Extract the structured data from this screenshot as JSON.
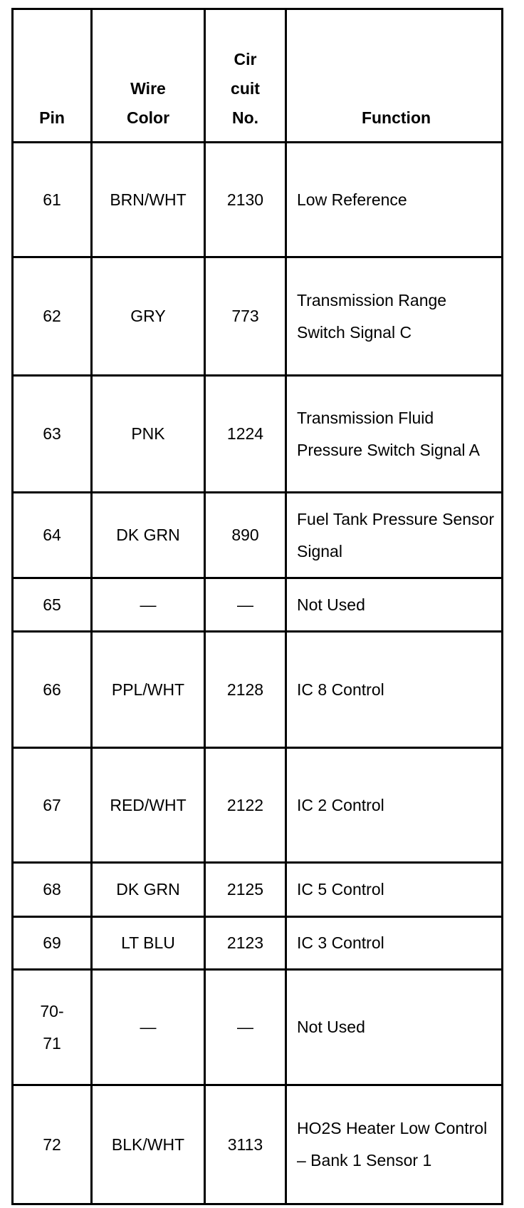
{
  "headers": {
    "pin": "Pin",
    "wire_color": "Wire Color",
    "circuit_no": "Cir cuit No.",
    "function": "Function"
  },
  "rows": [
    {
      "pin": "61",
      "wire": "BRN/WHT",
      "circuit": "2130",
      "function": "Low Reference"
    },
    {
      "pin": "62",
      "wire": "GRY",
      "circuit": "773",
      "function": "Transmission Range Switch Signal C"
    },
    {
      "pin": "63",
      "wire": "PNK",
      "circuit": "1224",
      "function": "Transmission Fluid Pressure Switch Signal A"
    },
    {
      "pin": "64",
      "wire": "DK GRN",
      "circuit": "890",
      "function": "Fuel Tank Pressure Sensor Signal"
    },
    {
      "pin": "65",
      "wire": "—",
      "circuit": "—",
      "function": "Not Used"
    },
    {
      "pin": "66",
      "wire": "PPL/WHT",
      "circuit": "2128",
      "function": "IC 8 Control"
    },
    {
      "pin": "67",
      "wire": "RED/WHT",
      "circuit": "2122",
      "function": "IC 2 Control"
    },
    {
      "pin": "68",
      "wire": "DK GRN",
      "circuit": "2125",
      "function": "IC 5 Control"
    },
    {
      "pin": "69",
      "wire": "LT BLU",
      "circuit": "2123",
      "function": "IC 3 Control"
    },
    {
      "pin": "70-71",
      "wire": "—",
      "circuit": "—",
      "function": "Not Used"
    },
    {
      "pin": "72",
      "wire": "BLK/WHT",
      "circuit": "3113",
      "function": "HO2S Heater Low Control – Bank 1 Sensor 1"
    }
  ]
}
